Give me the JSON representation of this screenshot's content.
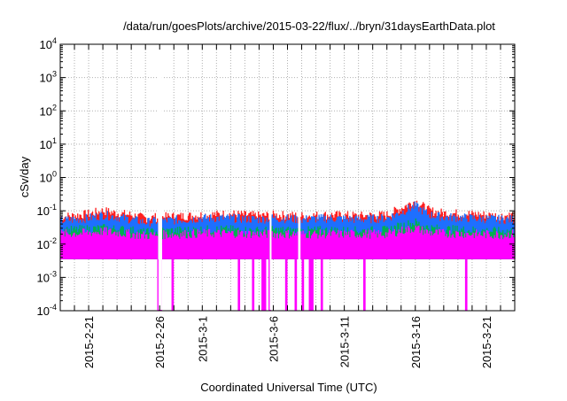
{
  "chart_data": {
    "type": "area",
    "title": "/data/run/goesPlots/archive/2015-03-22/flux/../bryn/31daysEarthData.plot",
    "xlabel": "Coordinated Universal Time (UTC)",
    "ylabel": "cSv/day",
    "yscale": "log",
    "ylim": [
      0.0001,
      10000
    ],
    "xlim": [
      "2015-02-19",
      "2015-03-23"
    ],
    "grid": true,
    "y_ticks": [
      {
        "base": "10",
        "exp": "-4",
        "value": 0.0001
      },
      {
        "base": "10",
        "exp": "-3",
        "value": 0.001
      },
      {
        "base": "10",
        "exp": "-2",
        "value": 0.01
      },
      {
        "base": "10",
        "exp": "-1",
        "value": 0.1
      },
      {
        "base": "10",
        "exp": "0",
        "value": 1
      },
      {
        "base": "10",
        "exp": "1",
        "value": 10
      },
      {
        "base": "10",
        "exp": "2",
        "value": 100
      },
      {
        "base": "10",
        "exp": "3",
        "value": 1000
      },
      {
        "base": "10",
        "exp": "4",
        "value": 10000
      }
    ],
    "x_ticks": [
      {
        "label": "2015-2-21",
        "date": "2015-02-21"
      },
      {
        "label": "2015-2-26",
        "date": "2015-02-26"
      },
      {
        "label": "2015-3-1",
        "date": "2015-03-01"
      },
      {
        "label": "2015-3-6",
        "date": "2015-03-06"
      },
      {
        "label": "2015-3-11",
        "date": "2015-03-11"
      },
      {
        "label": "2015-3-16",
        "date": "2015-03-16"
      },
      {
        "label": "2015-3-21",
        "date": "2015-03-21"
      }
    ],
    "series": [
      {
        "color": "#ff2020",
        "x": [
          "2015-02-19",
          "2015-02-21",
          "2015-02-22",
          "2015-02-23",
          "2015-02-24",
          "2015-02-25",
          "2015-02-26",
          "2015-02-28",
          "2015-03-01",
          "2015-03-03",
          "2015-03-05",
          "2015-03-06",
          "2015-03-08",
          "2015-03-10",
          "2015-03-12",
          "2015-03-14",
          "2015-03-15",
          "2015-03-16",
          "2015-03-17",
          "2015-03-18",
          "2015-03-20",
          "2015-03-22",
          "2015-03-23"
        ],
        "values": [
          0.065,
          0.08,
          0.1,
          0.085,
          0.075,
          0.06,
          0.065,
          0.07,
          0.075,
          0.08,
          0.07,
          0.075,
          0.07,
          0.075,
          0.07,
          0.075,
          0.12,
          0.2,
          0.1,
          0.085,
          0.08,
          0.07,
          0.075
        ]
      },
      {
        "color": "#1e6fff",
        "x": [
          "2015-02-19",
          "2015-02-21",
          "2015-02-22",
          "2015-02-23",
          "2015-02-24",
          "2015-02-25",
          "2015-02-26",
          "2015-02-28",
          "2015-03-01",
          "2015-03-03",
          "2015-03-05",
          "2015-03-06",
          "2015-03-08",
          "2015-03-10",
          "2015-03-12",
          "2015-03-14",
          "2015-03-15",
          "2015-03-16",
          "2015-03-17",
          "2015-03-18",
          "2015-03-20",
          "2015-03-22",
          "2015-03-23"
        ],
        "values": [
          0.05,
          0.06,
          0.075,
          0.065,
          0.055,
          0.045,
          0.05,
          0.055,
          0.06,
          0.06,
          0.055,
          0.06,
          0.055,
          0.06,
          0.055,
          0.06,
          0.09,
          0.14,
          0.075,
          0.065,
          0.06,
          0.055,
          0.055
        ]
      },
      {
        "color": "#00b050",
        "x": [
          "2015-02-19",
          "2015-02-21",
          "2015-02-22",
          "2015-02-23",
          "2015-02-24",
          "2015-02-25",
          "2015-02-26",
          "2015-02-28",
          "2015-03-01",
          "2015-03-03",
          "2015-03-05",
          "2015-03-06",
          "2015-03-08",
          "2015-03-10",
          "2015-03-12",
          "2015-03-14",
          "2015-03-15",
          "2015-03-16",
          "2015-03-17",
          "2015-03-18",
          "2015-03-20",
          "2015-03-22",
          "2015-03-23"
        ],
        "values": [
          0.025,
          0.028,
          0.03,
          0.028,
          0.026,
          0.022,
          0.024,
          0.026,
          0.027,
          0.027,
          0.025,
          0.026,
          0.025,
          0.026,
          0.025,
          0.026,
          0.035,
          0.045,
          0.03,
          0.028,
          0.026,
          0.024,
          0.025
        ]
      },
      {
        "color": "#ff00ff",
        "x": [
          "2015-02-19",
          "2015-02-21",
          "2015-02-22",
          "2015-02-23",
          "2015-02-24",
          "2015-02-25",
          "2015-02-26",
          "2015-02-28",
          "2015-03-01",
          "2015-03-03",
          "2015-03-05",
          "2015-03-06",
          "2015-03-08",
          "2015-03-10",
          "2015-03-12",
          "2015-03-14",
          "2015-03-15",
          "2015-03-16",
          "2015-03-17",
          "2015-03-18",
          "2015-03-20",
          "2015-03-22",
          "2015-03-23"
        ],
        "values": [
          0.02,
          0.022,
          0.024,
          0.022,
          0.02,
          0.018,
          0.019,
          0.02,
          0.021,
          0.021,
          0.02,
          0.02,
          0.02,
          0.02,
          0.02,
          0.02,
          0.025,
          0.03,
          0.022,
          0.021,
          0.02,
          0.019,
          0.02
        ]
      }
    ],
    "band_floor": 0.0035,
    "dropouts": [
      {
        "from": "2015-02-25 20:00",
        "to": "2015-02-26 04:00",
        "min": 0.0001
      },
      {
        "from": "2015-02-26 20:00",
        "to": "2015-02-27 00:00",
        "min": 0.0001
      },
      {
        "from": "2015-03-03 12:00",
        "to": "2015-03-03 16:00",
        "min": 0.0001
      },
      {
        "from": "2015-03-04 12:00",
        "to": "2015-03-04 16:00",
        "min": 0.0001
      },
      {
        "from": "2015-03-05 04:00",
        "to": "2015-03-05 12:00",
        "min": 0.0001
      },
      {
        "from": "2015-03-05 16:00",
        "to": "2015-03-05 20:00",
        "min": 0.0001
      },
      {
        "from": "2015-03-06 20:00",
        "to": "2015-03-07 00:00",
        "min": 0.0001
      },
      {
        "from": "2015-03-07 12:00",
        "to": "2015-03-07 16:00",
        "min": 0.0001
      },
      {
        "from": "2015-03-08 00:00",
        "to": "2015-03-08 04:00",
        "min": 0.0001
      },
      {
        "from": "2015-03-08 12:00",
        "to": "2015-03-08 20:00",
        "min": 0.0001
      },
      {
        "from": "2015-03-09 08:00",
        "to": "2015-03-09 12:00",
        "min": 0.0001
      },
      {
        "from": "2015-03-12 08:00",
        "to": "2015-03-12 12:00",
        "min": 0.0001
      },
      {
        "from": "2015-03-19 12:00",
        "to": "2015-03-19 16:00",
        "min": 0.0001
      }
    ],
    "gaps": [
      {
        "from": "2015-02-25 22:00",
        "to": "2015-02-26 04:00"
      },
      {
        "from": "2015-03-05 18:00",
        "to": "2015-03-05 20:00"
      },
      {
        "from": "2015-03-07 18:00",
        "to": "2015-03-07 22:00"
      }
    ]
  }
}
